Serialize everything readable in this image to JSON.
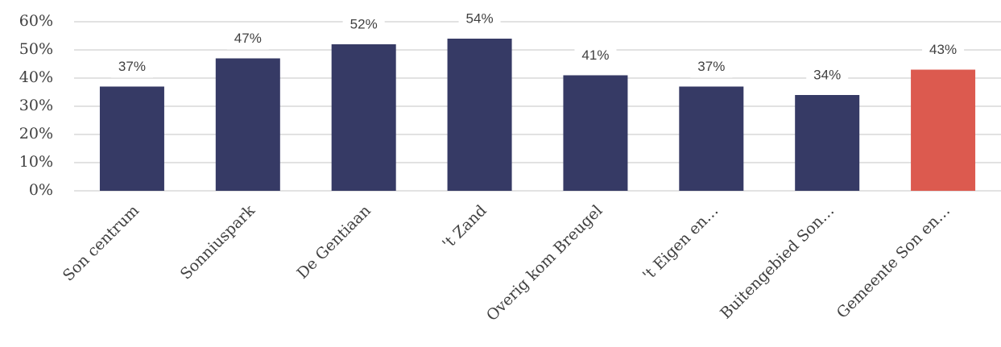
{
  "chart_data": {
    "type": "bar",
    "categories": [
      "Son centrum",
      "Sonniuspark",
      "De Gentiaan",
      "'t Zand",
      "Overig kom Breugel",
      "'t Eigen en…",
      "Buitengebied Son…",
      "Gemeente Son en…"
    ],
    "values": [
      37,
      47,
      52,
      54,
      41,
      37,
      34,
      43
    ],
    "value_labels": [
      "37%",
      "47%",
      "52%",
      "54%",
      "41%",
      "37%",
      "34%",
      "43%"
    ],
    "colors": [
      "#363a65",
      "#363a65",
      "#363a65",
      "#363a65",
      "#363a65",
      "#363a65",
      "#363a65",
      "#dc5a4f"
    ],
    "ylim": [
      0,
      60
    ],
    "yticks": [
      {
        "value": 0,
        "label": "0%"
      },
      {
        "value": 10,
        "label": "10%"
      },
      {
        "value": 20,
        "label": "20%"
      },
      {
        "value": 30,
        "label": "30%"
      },
      {
        "value": 40,
        "label": "40%"
      },
      {
        "value": 50,
        "label": "50%"
      },
      {
        "value": 60,
        "label": "60%"
      }
    ],
    "grid": true
  }
}
